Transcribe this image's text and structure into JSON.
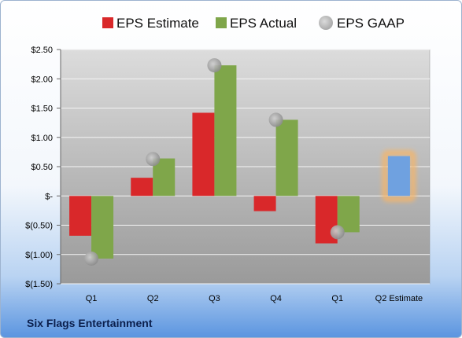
{
  "company": "Six Flags Entertainment",
  "colors": {
    "estimate": "#d9282a",
    "actual": "#7fa64a",
    "gaap": "#a8a8a8",
    "forecast": "#6fa1e0",
    "forecast_glow": "#f5b56a"
  },
  "chart_data": {
    "type": "bar",
    "categories": [
      "Q1",
      "Q2",
      "Q3",
      "Q4",
      "Q1",
      "Q2 Estimate"
    ],
    "series": [
      {
        "name": "EPS Estimate",
        "values": [
          -0.68,
          0.31,
          1.42,
          -0.26,
          -0.81,
          null
        ]
      },
      {
        "name": "EPS Actual",
        "values": [
          -1.07,
          0.64,
          2.23,
          1.3,
          -0.62,
          0.68
        ]
      },
      {
        "name": "EPS GAAP",
        "values": [
          -1.07,
          0.63,
          2.23,
          1.3,
          -0.62,
          null
        ]
      }
    ],
    "forecast_index": 5,
    "ylim": [
      -1.5,
      2.5
    ],
    "yticks": [
      2.5,
      2.0,
      1.5,
      1.0,
      0.5,
      0,
      -0.5,
      -1.0,
      -1.5
    ],
    "ytick_labels": [
      "$2.50",
      "$2.00",
      "$1.50",
      "$1.00",
      "$0.50",
      "$-",
      "$(0.50)",
      "$(1.00)",
      "$(1.50)"
    ],
    "legend_position": "top",
    "grid": true
  }
}
